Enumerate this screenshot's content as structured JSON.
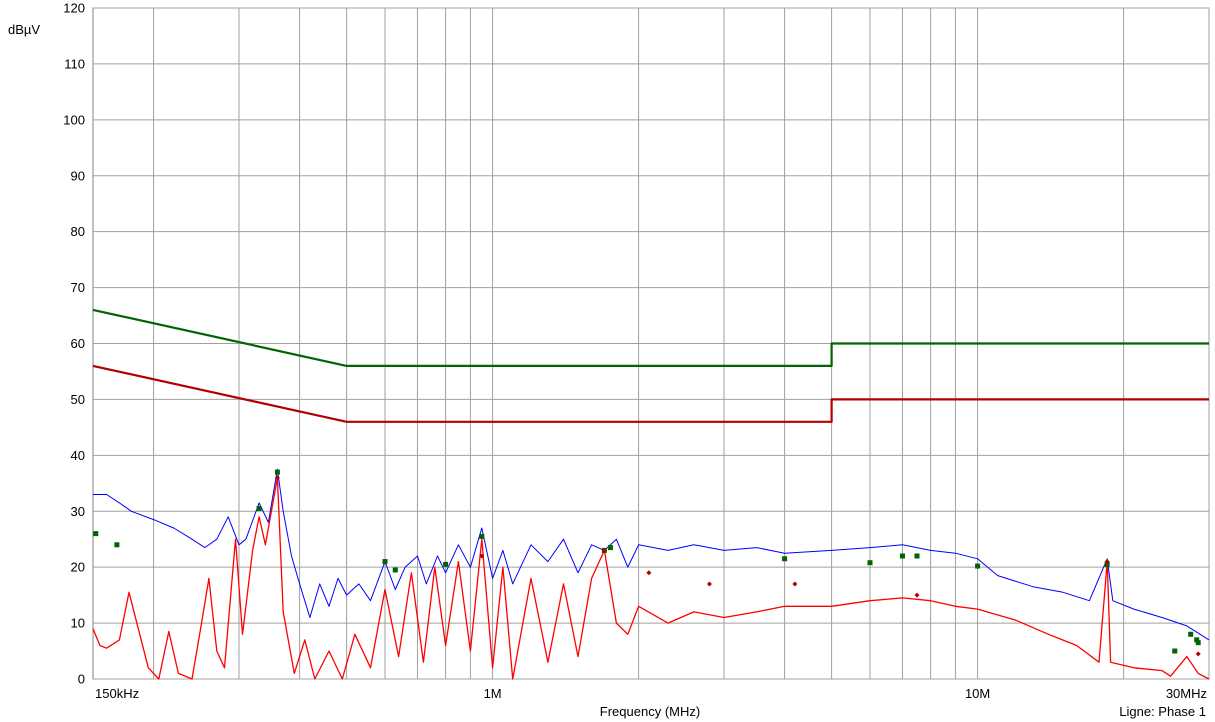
{
  "chart_data": {
    "type": "line",
    "ylabel": "dBµV",
    "xlabel": "Frequency (MHz)",
    "footer": "Ligne: Phase 1",
    "x_scale": "log",
    "xlim": [
      0.15,
      30
    ],
    "ylim": [
      0,
      120
    ],
    "y_ticks": [
      0,
      10,
      20,
      30,
      40,
      50,
      60,
      70,
      80,
      90,
      100,
      110,
      120
    ],
    "x_tick_labels": [
      {
        "x": 0.15,
        "label": "150kHz"
      },
      {
        "x": 1,
        "label": "1M"
      },
      {
        "x": 10,
        "label": "10M"
      },
      {
        "x": 30,
        "label": "30MHz"
      }
    ],
    "x_gridlines": [
      0.2,
      0.3,
      0.4,
      0.5,
      0.6,
      0.7,
      0.8,
      0.9,
      1,
      2,
      3,
      4,
      5,
      6,
      7,
      8,
      9,
      10,
      20,
      30
    ],
    "grid": true,
    "colors": {
      "quasi_peak_limit": "#006400",
      "average_limit": "#b00000",
      "peak_trace": "#0000ff",
      "average_trace": "#ff0000",
      "qp_markers": "#006400",
      "avg_markers": "#b00000",
      "grid": "#a0a0a0"
    },
    "series": [
      {
        "key": "qp_limit",
        "points": [
          [
            0.15,
            66
          ],
          [
            0.5,
            56
          ],
          [
            5,
            56
          ],
          [
            5,
            60
          ],
          [
            30,
            60
          ]
        ]
      },
      {
        "key": "avg_limit",
        "points": [
          [
            0.15,
            56
          ],
          [
            0.5,
            46
          ],
          [
            5,
            46
          ],
          [
            5,
            50
          ],
          [
            30,
            50
          ]
        ]
      },
      {
        "key": "peak_trace",
        "points": [
          [
            0.15,
            33
          ],
          [
            0.16,
            33
          ],
          [
            0.17,
            31.5
          ],
          [
            0.18,
            30
          ],
          [
            0.2,
            28.5
          ],
          [
            0.22,
            27
          ],
          [
            0.24,
            25
          ],
          [
            0.255,
            23.5
          ],
          [
            0.27,
            25
          ],
          [
            0.285,
            29
          ],
          [
            0.3,
            24
          ],
          [
            0.31,
            25
          ],
          [
            0.33,
            31.5
          ],
          [
            0.345,
            28
          ],
          [
            0.36,
            37.5
          ],
          [
            0.37,
            30
          ],
          [
            0.385,
            22
          ],
          [
            0.4,
            17
          ],
          [
            0.42,
            11
          ],
          [
            0.44,
            17
          ],
          [
            0.46,
            13
          ],
          [
            0.48,
            18
          ],
          [
            0.5,
            15
          ],
          [
            0.53,
            17
          ],
          [
            0.56,
            14
          ],
          [
            0.6,
            21
          ],
          [
            0.63,
            16
          ],
          [
            0.66,
            20
          ],
          [
            0.7,
            22
          ],
          [
            0.73,
            17
          ],
          [
            0.77,
            22
          ],
          [
            0.8,
            19
          ],
          [
            0.85,
            24
          ],
          [
            0.9,
            20
          ],
          [
            0.95,
            27
          ],
          [
            1,
            18
          ],
          [
            1.05,
            23
          ],
          [
            1.1,
            17
          ],
          [
            1.2,
            24
          ],
          [
            1.3,
            21
          ],
          [
            1.4,
            25
          ],
          [
            1.5,
            19
          ],
          [
            1.6,
            24
          ],
          [
            1.7,
            23
          ],
          [
            1.8,
            25
          ],
          [
            1.9,
            20
          ],
          [
            2,
            24
          ],
          [
            2.3,
            23
          ],
          [
            2.6,
            24
          ],
          [
            3,
            23
          ],
          [
            3.5,
            23.5
          ],
          [
            4,
            22.5
          ],
          [
            5,
            23
          ],
          [
            6,
            23.5
          ],
          [
            7,
            24
          ],
          [
            8,
            23
          ],
          [
            9,
            22.5
          ],
          [
            10,
            21.5
          ],
          [
            11,
            18.5
          ],
          [
            13,
            16.5
          ],
          [
            15,
            15.5
          ],
          [
            17,
            14
          ],
          [
            18.5,
            21.5
          ],
          [
            19,
            14
          ],
          [
            21,
            12.5
          ],
          [
            24,
            11
          ],
          [
            27,
            9.5
          ],
          [
            30,
            7
          ]
        ]
      },
      {
        "key": "avg_trace",
        "points": [
          [
            0.15,
            9
          ],
          [
            0.155,
            6
          ],
          [
            0.16,
            5.5
          ],
          [
            0.17,
            7
          ],
          [
            0.178,
            15.5
          ],
          [
            0.186,
            9
          ],
          [
            0.195,
            2
          ],
          [
            0.205,
            0
          ],
          [
            0.215,
            8.5
          ],
          [
            0.225,
            1
          ],
          [
            0.24,
            0
          ],
          [
            0.25,
            9
          ],
          [
            0.26,
            18
          ],
          [
            0.27,
            5
          ],
          [
            0.28,
            2
          ],
          [
            0.295,
            25
          ],
          [
            0.305,
            8
          ],
          [
            0.32,
            23
          ],
          [
            0.33,
            29
          ],
          [
            0.34,
            24
          ],
          [
            0.36,
            36
          ],
          [
            0.37,
            12
          ],
          [
            0.39,
            1
          ],
          [
            0.41,
            7
          ],
          [
            0.43,
            0
          ],
          [
            0.46,
            5
          ],
          [
            0.49,
            0
          ],
          [
            0.52,
            8
          ],
          [
            0.56,
            2
          ],
          [
            0.6,
            16
          ],
          [
            0.64,
            4
          ],
          [
            0.68,
            19
          ],
          [
            0.72,
            3
          ],
          [
            0.76,
            20
          ],
          [
            0.8,
            6
          ],
          [
            0.85,
            21
          ],
          [
            0.9,
            5
          ],
          [
            0.95,
            25
          ],
          [
            1,
            2
          ],
          [
            1.05,
            20
          ],
          [
            1.1,
            0
          ],
          [
            1.2,
            18
          ],
          [
            1.3,
            3
          ],
          [
            1.4,
            17
          ],
          [
            1.5,
            4
          ],
          [
            1.6,
            18
          ],
          [
            1.7,
            23
          ],
          [
            1.8,
            10
          ],
          [
            1.9,
            8
          ],
          [
            2,
            13
          ],
          [
            2.3,
            10
          ],
          [
            2.6,
            12
          ],
          [
            3,
            11
          ],
          [
            3.5,
            12
          ],
          [
            4,
            13
          ],
          [
            5,
            13
          ],
          [
            6,
            14
          ],
          [
            7,
            14.5
          ],
          [
            8,
            14
          ],
          [
            9,
            13
          ],
          [
            10,
            12.5
          ],
          [
            12,
            10.5
          ],
          [
            14,
            8
          ],
          [
            16,
            6
          ],
          [
            17.8,
            3
          ],
          [
            18.5,
            21
          ],
          [
            18.8,
            3
          ],
          [
            21,
            2
          ],
          [
            24,
            1.5
          ],
          [
            25,
            0.5
          ],
          [
            27,
            4
          ],
          [
            28.5,
            1
          ],
          [
            30,
            0
          ]
        ]
      }
    ],
    "qp_markers": [
      [
        0.152,
        26
      ],
      [
        0.168,
        24
      ],
      [
        0.33,
        30.5
      ],
      [
        0.36,
        37
      ],
      [
        0.6,
        21
      ],
      [
        0.63,
        19.5
      ],
      [
        0.8,
        20.5
      ],
      [
        0.95,
        25.5
      ],
      [
        1.7,
        23
      ],
      [
        1.75,
        23.5
      ],
      [
        4,
        21.5
      ],
      [
        6,
        20.8
      ],
      [
        7,
        22
      ],
      [
        7.5,
        22
      ],
      [
        10,
        20.2
      ],
      [
        18.5,
        20.5
      ],
      [
        25.5,
        5
      ],
      [
        27.5,
        8
      ],
      [
        28.3,
        7
      ],
      [
        28.5,
        6.5
      ]
    ],
    "avg_markers": [
      [
        0.36,
        36
      ],
      [
        0.95,
        22
      ],
      [
        1.7,
        23
      ],
      [
        2.1,
        19
      ],
      [
        2.8,
        17
      ],
      [
        4.2,
        17
      ],
      [
        7.5,
        15
      ],
      [
        18.5,
        21
      ],
      [
        28.5,
        4.5
      ]
    ]
  }
}
